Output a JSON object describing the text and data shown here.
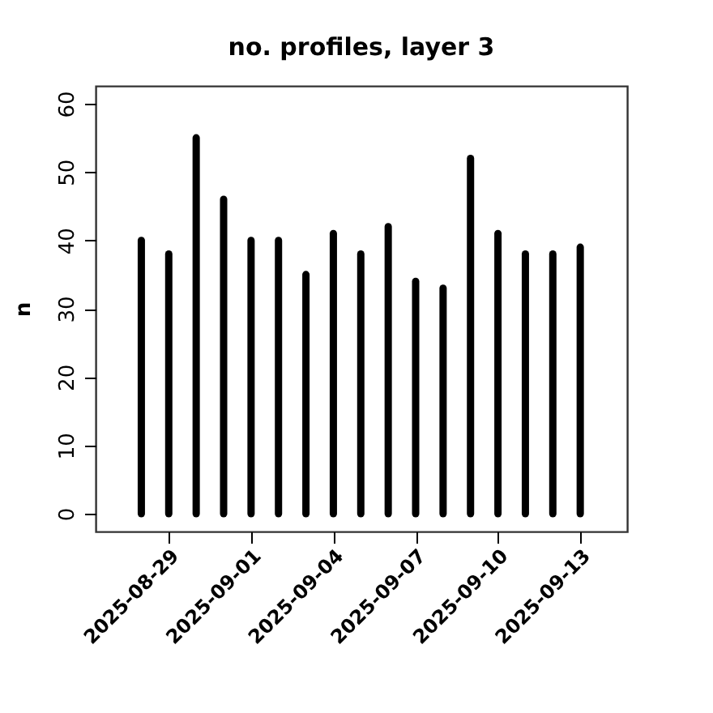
{
  "chart_data": {
    "type": "bar",
    "title": "no. profiles, layer 3",
    "ylabel": "n",
    "x": [
      "2025-08-28",
      "2025-08-29",
      "2025-08-30",
      "2025-08-31",
      "2025-09-01",
      "2025-09-02",
      "2025-09-03",
      "2025-09-04",
      "2025-09-05",
      "2025-09-06",
      "2025-09-07",
      "2025-09-08",
      "2025-09-09",
      "2025-09-10",
      "2025-09-11",
      "2025-09-12",
      "2025-09-13"
    ],
    "values": [
      40,
      38,
      55,
      46,
      40,
      40,
      35,
      41,
      38,
      42,
      34,
      33,
      52,
      41,
      38,
      38,
      39
    ],
    "color": "#000000",
    "xlim": [
      "2025-08-26T08:00",
      "2025-09-14T17:00"
    ],
    "xticks": [
      {
        "value": "2025-08-29",
        "label": "2025-08-29"
      },
      {
        "value": "2025-09-01",
        "label": "2025-09-01"
      },
      {
        "value": "2025-09-04",
        "label": "2025-09-04"
      },
      {
        "value": "2025-09-07",
        "label": "2025-09-07"
      },
      {
        "value": "2025-09-10",
        "label": "2025-09-10"
      },
      {
        "value": "2025-09-13",
        "label": "2025-09-13"
      }
    ],
    "ylim": [
      -2.6,
      62.6
    ],
    "yticks": [
      0,
      10,
      20,
      30,
      40,
      50,
      60
    ],
    "grid": false
  }
}
